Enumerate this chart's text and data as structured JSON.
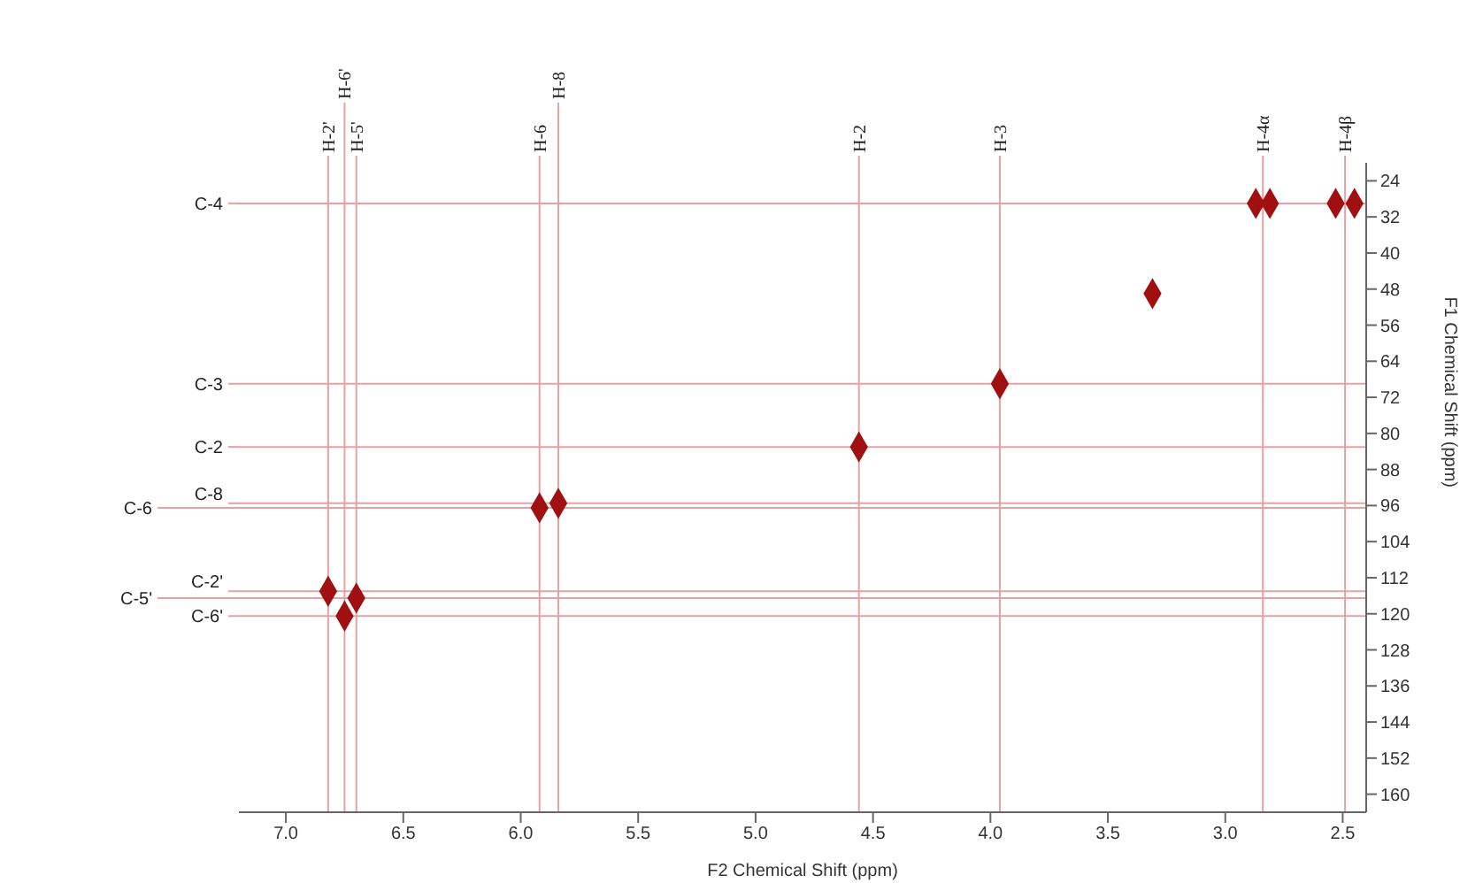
{
  "chart_data": {
    "type": "scatter",
    "xlabel": "F2 Chemical Shift (ppm)",
    "ylabel": "F1 Chemical Shift (ppm)",
    "xlim": [
      7.2,
      2.4
    ],
    "ylim": [
      164,
      20
    ],
    "xticks": [
      {
        "value": 7,
        "label": "7.0"
      },
      6.5,
      {
        "value": 6,
        "label": "6.0"
      },
      5.5,
      {
        "value": 5,
        "label": "5.0"
      },
      4.5,
      {
        "value": 4,
        "label": "4.0"
      },
      3.5,
      {
        "value": 3,
        "label": "3.0"
      },
      2.5
    ],
    "yticks": [
      24,
      32,
      40,
      48,
      56,
      64,
      72,
      80,
      88,
      96,
      104,
      112,
      120,
      128,
      136,
      144,
      152,
      160
    ],
    "series": [
      {
        "color": "#a01010",
        "x": [
          6.82,
          6.7,
          6.75,
          5.92,
          5.84,
          4.56,
          3.96,
          2.87,
          2.81,
          2.53,
          2.45,
          3.31
        ],
        "values": [
          115,
          116.5,
          120.5,
          96.5,
          95.5,
          83,
          69,
          29,
          29,
          29,
          29,
          49
        ]
      }
    ],
    "ref_lines": [
      {
        "axis": "x",
        "value": 6.82,
        "label": "H-2'",
        "color": "#e8a0a0"
      },
      {
        "axis": "x",
        "value": 6.75,
        "label": "H-6'",
        "color": "#e8a0a0"
      },
      {
        "axis": "x",
        "value": 6.7,
        "label": "H-5'",
        "color": "#e8a0a0"
      },
      {
        "axis": "x",
        "value": 5.92,
        "label": "H-6",
        "color": "#e8a0a0"
      },
      {
        "axis": "x",
        "value": 5.84,
        "label": "H-8",
        "color": "#e8a0a0"
      },
      {
        "axis": "x",
        "value": 4.56,
        "label": "H-2",
        "color": "#e8a0a0"
      },
      {
        "axis": "x",
        "value": 3.96,
        "label": "H-3",
        "color": "#e8a0a0"
      },
      {
        "axis": "x",
        "value": 2.84,
        "label": "H-4α",
        "color": "#e8a0a0"
      },
      {
        "axis": "x",
        "value": 2.49,
        "label": "H-4β",
        "color": "#e8a0a0"
      },
      {
        "axis": "y",
        "value": 29,
        "label": "C-4",
        "color": "#e8a0a0"
      },
      {
        "axis": "y",
        "value": 69,
        "label": "C-3",
        "color": "#e8a0a0"
      },
      {
        "axis": "y",
        "value": 83,
        "label": "C-2",
        "color": "#e8a0a0"
      },
      {
        "axis": "y",
        "value": 95.5,
        "label": "C-8",
        "color": "#e8a0a0"
      },
      {
        "axis": "y",
        "value": 96.5,
        "label": "C-6",
        "color": "#e8a0a0"
      },
      {
        "axis": "y",
        "value": 115,
        "label": "C-2'",
        "color": "#e8a0a0"
      },
      {
        "axis": "y",
        "value": 116.5,
        "label": "C-5'",
        "color": "#e8a0a0"
      },
      {
        "axis": "y",
        "value": 120.5,
        "label": "C-6'",
        "color": "#e8a0a0"
      }
    ],
    "marker": "diamond",
    "grid": false,
    "legend": false
  }
}
